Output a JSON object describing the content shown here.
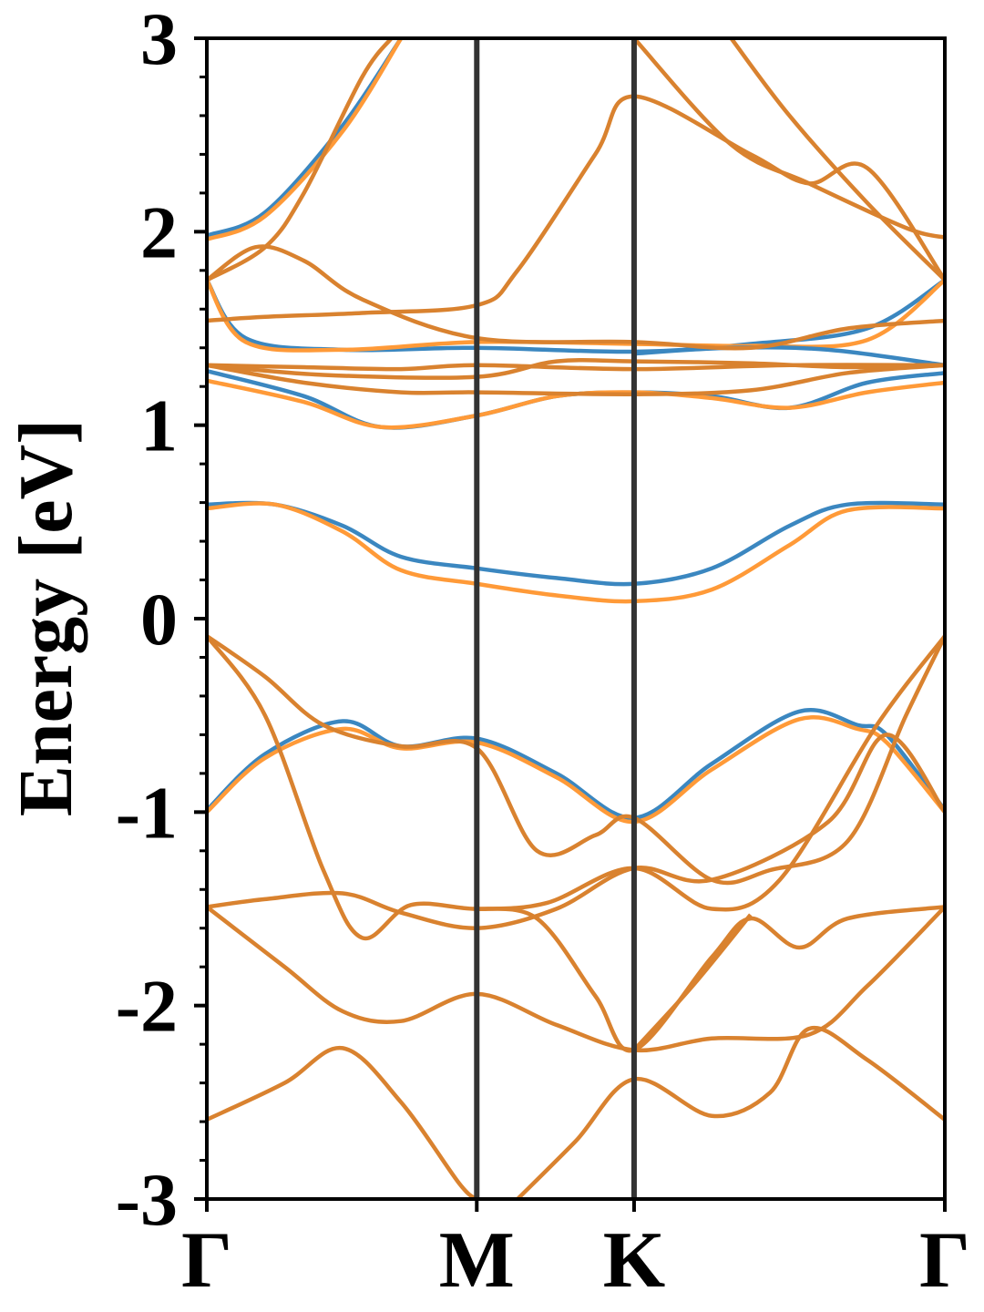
{
  "chart_data": {
    "type": "line",
    "title": "",
    "xlabel": "",
    "ylabel": "Energy [eV]",
    "ylim": [
      -3,
      3
    ],
    "yticks": [
      -3,
      -2,
      -1,
      0,
      1,
      2,
      3
    ],
    "ytick_labels": [
      "-3",
      "-2",
      "-1",
      "0",
      "1",
      "2",
      "3"
    ],
    "yminor_step": 0.2,
    "xlim": [
      0,
      3.8
    ],
    "kpoints": [
      {
        "label": "Γ",
        "x": 0
      },
      {
        "label": "M",
        "x": 1.39
      },
      {
        "label": "K",
        "x": 2.2
      },
      {
        "label": "Γ",
        "x": 3.8
      }
    ],
    "grid": false,
    "legend": "none",
    "colors": {
      "blue": "#3b87c0",
      "orange": "#ff9a38",
      "overlap": "#d9822f",
      "vline": "#333333"
    },
    "series": [
      {
        "color": "blue",
        "points": [
          [
            0,
            0.59
          ],
          [
            0.35,
            0.59
          ],
          [
            0.7,
            0.48
          ],
          [
            1.0,
            0.32
          ],
          [
            1.39,
            0.26
          ],
          [
            1.8,
            0.21
          ],
          [
            2.2,
            0.18
          ],
          [
            2.6,
            0.26
          ],
          [
            3.0,
            0.48
          ],
          [
            3.3,
            0.59
          ],
          [
            3.8,
            0.59
          ]
        ]
      },
      {
        "color": "orange",
        "points": [
          [
            0,
            0.57
          ],
          [
            0.35,
            0.59
          ],
          [
            0.7,
            0.45
          ],
          [
            1.0,
            0.25
          ],
          [
            1.39,
            0.18
          ],
          [
            1.8,
            0.12
          ],
          [
            2.2,
            0.09
          ],
          [
            2.6,
            0.15
          ],
          [
            3.0,
            0.38
          ],
          [
            3.3,
            0.56
          ],
          [
            3.8,
            0.57
          ]
        ]
      },
      {
        "color": "blue",
        "points": [
          [
            0,
            -0.99
          ],
          [
            0.3,
            -0.7
          ],
          [
            0.7,
            -0.53
          ],
          [
            1.0,
            -0.66
          ],
          [
            1.39,
            -0.62
          ],
          [
            1.8,
            -0.8
          ],
          [
            2.2,
            -1.03
          ],
          [
            2.6,
            -0.75
          ],
          [
            3.05,
            -0.48
          ],
          [
            3.35,
            -0.55
          ],
          [
            3.5,
            -0.6
          ],
          [
            3.8,
            -0.99
          ]
        ]
      },
      {
        "color": "orange",
        "points": [
          [
            0,
            -1.0
          ],
          [
            0.3,
            -0.72
          ],
          [
            0.7,
            -0.57
          ],
          [
            1.0,
            -0.67
          ],
          [
            1.39,
            -0.64
          ],
          [
            1.8,
            -0.82
          ],
          [
            2.2,
            -1.05
          ],
          [
            2.6,
            -0.78
          ],
          [
            3.05,
            -0.52
          ],
          [
            3.35,
            -0.57
          ],
          [
            3.5,
            -0.64
          ],
          [
            3.8,
            -1.0
          ]
        ]
      },
      {
        "color": "blue",
        "points": [
          [
            0,
            1.28
          ],
          [
            0.5,
            1.15
          ],
          [
            0.9,
            0.99
          ],
          [
            1.39,
            1.05
          ],
          [
            1.8,
            1.15
          ],
          [
            2.2,
            1.17
          ],
          [
            2.6,
            1.15
          ],
          [
            3.0,
            1.09
          ],
          [
            3.4,
            1.22
          ],
          [
            3.8,
            1.27
          ]
        ]
      },
      {
        "color": "orange",
        "points": [
          [
            0,
            1.23
          ],
          [
            0.5,
            1.12
          ],
          [
            0.9,
            0.99
          ],
          [
            1.39,
            1.05
          ],
          [
            1.8,
            1.15
          ],
          [
            2.2,
            1.17
          ],
          [
            2.6,
            1.14
          ],
          [
            3.0,
            1.09
          ],
          [
            3.4,
            1.17
          ],
          [
            3.8,
            1.22
          ]
        ]
      },
      {
        "color": "blue",
        "points": [
          [
            0,
            1.98
          ],
          [
            0.3,
            2.1
          ],
          [
            0.7,
            2.55
          ],
          [
            1.0,
            3.0
          ]
        ]
      },
      {
        "color": "orange",
        "points": [
          [
            0,
            1.96
          ],
          [
            0.3,
            2.08
          ],
          [
            0.7,
            2.52
          ],
          [
            1.0,
            3.0
          ]
        ]
      },
      {
        "color": "blue",
        "points": [
          [
            0,
            1.75
          ],
          [
            0.2,
            1.45
          ],
          [
            0.7,
            1.39
          ],
          [
            1.39,
            1.4
          ],
          [
            2.2,
            1.38
          ],
          [
            2.8,
            1.42
          ],
          [
            3.4,
            1.5
          ],
          [
            3.8,
            1.75
          ]
        ]
      },
      {
        "color": "orange",
        "points": [
          [
            0,
            1.75
          ],
          [
            0.2,
            1.43
          ],
          [
            0.7,
            1.39
          ],
          [
            1.39,
            1.43
          ],
          [
            2.2,
            1.42
          ],
          [
            2.8,
            1.41
          ],
          [
            3.4,
            1.44
          ],
          [
            3.8,
            1.75
          ]
        ]
      },
      {
        "color": "blue",
        "points": [
          [
            2.2,
            1.37
          ],
          [
            2.7,
            1.4
          ],
          [
            3.2,
            1.39
          ],
          [
            3.8,
            1.31
          ]
        ]
      },
      {
        "color": "overlap",
        "points": [
          [
            0,
            1.31
          ],
          [
            0.5,
            1.3
          ],
          [
            1.0,
            1.29
          ],
          [
            1.39,
            1.31
          ],
          [
            2.2,
            1.29
          ],
          [
            3.0,
            1.31
          ],
          [
            3.8,
            1.31
          ]
        ]
      },
      {
        "color": "overlap",
        "points": [
          [
            0,
            1.31
          ],
          [
            0.6,
            1.26
          ],
          [
            1.39,
            1.25
          ],
          [
            1.8,
            1.33
          ],
          [
            2.2,
            1.33
          ],
          [
            2.8,
            1.32
          ],
          [
            3.3,
            1.3
          ],
          [
            3.8,
            1.31
          ]
        ]
      },
      {
        "color": "overlap",
        "points": [
          [
            0,
            1.31
          ],
          [
            0.5,
            1.22
          ],
          [
            1.0,
            1.17
          ],
          [
            1.39,
            1.17
          ],
          [
            2.2,
            1.16
          ],
          [
            2.8,
            1.18
          ],
          [
            3.3,
            1.27
          ],
          [
            3.8,
            1.31
          ]
        ]
      },
      {
        "color": "overlap",
        "points": [
          [
            0,
            1.54
          ],
          [
            0.3,
            1.56
          ],
          [
            0.8,
            1.58
          ],
          [
            1.39,
            1.62
          ],
          [
            1.6,
            1.8
          ],
          [
            2.0,
            2.4
          ],
          [
            2.2,
            2.7
          ],
          [
            2.8,
            2.4
          ],
          [
            3.1,
            2.25
          ],
          [
            3.4,
            2.33
          ],
          [
            3.8,
            1.75
          ]
        ]
      },
      {
        "color": "overlap",
        "points": [
          [
            0,
            1.75
          ],
          [
            0.25,
            1.92
          ],
          [
            0.5,
            1.85
          ],
          [
            0.8,
            1.65
          ],
          [
            1.39,
            1.45
          ],
          [
            2.2,
            1.43
          ],
          [
            2.8,
            1.4
          ],
          [
            3.3,
            1.5
          ],
          [
            3.8,
            1.54
          ]
        ]
      },
      {
        "color": "overlap",
        "points": [
          [
            0,
            1.75
          ],
          [
            0.3,
            1.92
          ],
          [
            0.5,
            2.2
          ],
          [
            0.8,
            2.8
          ],
          [
            0.95,
            3.0
          ]
        ]
      },
      {
        "color": "overlap",
        "points": [
          [
            2.2,
            3.0
          ],
          [
            2.7,
            2.45
          ],
          [
            3.1,
            2.25
          ],
          [
            3.6,
            2.02
          ],
          [
            3.8,
            1.97
          ]
        ]
      },
      {
        "color": "overlap",
        "points": [
          [
            2.7,
            3.0
          ],
          [
            3.0,
            2.6
          ],
          [
            3.4,
            2.15
          ],
          [
            3.8,
            1.75
          ]
        ]
      },
      {
        "color": "overlap",
        "points": [
          [
            0,
            -0.09
          ],
          [
            0.3,
            -0.3
          ],
          [
            0.6,
            -0.55
          ],
          [
            1.0,
            -0.66
          ],
          [
            1.39,
            -0.67
          ],
          [
            1.7,
            -1.2
          ],
          [
            2.0,
            -1.12
          ],
          [
            2.2,
            -1.03
          ],
          [
            2.6,
            -1.35
          ],
          [
            2.9,
            -1.3
          ],
          [
            3.3,
            -1.15
          ],
          [
            3.6,
            -0.5
          ],
          [
            3.8,
            -0.09
          ]
        ]
      },
      {
        "color": "overlap",
        "points": [
          [
            0,
            -0.09
          ],
          [
            0.3,
            -0.5
          ],
          [
            0.6,
            -1.3
          ],
          [
            0.8,
            -1.65
          ],
          [
            1.05,
            -1.48
          ],
          [
            1.39,
            -1.5
          ],
          [
            1.75,
            -1.47
          ],
          [
            2.2,
            -1.29
          ],
          [
            2.6,
            -1.5
          ],
          [
            2.95,
            -1.35
          ],
          [
            3.45,
            -0.55
          ],
          [
            3.8,
            -0.09
          ]
        ]
      },
      {
        "color": "overlap",
        "points": [
          [
            0,
            -1.49
          ],
          [
            0.3,
            -1.45
          ],
          [
            0.7,
            -1.42
          ],
          [
            1.0,
            -1.52
          ],
          [
            1.39,
            -1.6
          ],
          [
            1.8,
            -1.5
          ],
          [
            2.2,
            -1.29
          ],
          [
            2.6,
            -1.35
          ],
          [
            3.2,
            -1.05
          ],
          [
            3.5,
            -0.6
          ],
          [
            3.8,
            -1.0
          ]
        ]
      },
      {
        "color": "overlap",
        "points": [
          [
            0,
            -1.49
          ],
          [
            0.4,
            -1.8
          ],
          [
            0.7,
            -2.03
          ],
          [
            1.0,
            -2.08
          ],
          [
            1.39,
            -1.94
          ],
          [
            1.8,
            -2.1
          ],
          [
            2.2,
            -2.23
          ],
          [
            2.6,
            -2.17
          ],
          [
            3.1,
            -2.15
          ],
          [
            3.4,
            -1.9
          ],
          [
            3.8,
            -1.49
          ]
        ]
      },
      {
        "color": "overlap",
        "points": [
          [
            1.39,
            -1.5
          ],
          [
            1.7,
            -1.55
          ],
          [
            2.0,
            -1.95
          ],
          [
            2.2,
            -2.23
          ],
          [
            2.6,
            -1.75
          ],
          [
            2.8,
            -1.55
          ],
          [
            3.05,
            -1.7
          ],
          [
            3.3,
            -1.55
          ],
          [
            3.8,
            -1.49
          ]
        ]
      },
      {
        "color": "overlap",
        "points": [
          [
            0,
            -2.59
          ],
          [
            0.4,
            -2.4
          ],
          [
            0.7,
            -2.22
          ],
          [
            1.0,
            -2.5
          ],
          [
            1.3,
            -2.92
          ],
          [
            1.39,
            -3.0
          ]
        ]
      },
      {
        "color": "overlap",
        "points": [
          [
            1.6,
            -3.0
          ],
          [
            1.9,
            -2.7
          ],
          [
            2.2,
            -2.38
          ],
          [
            2.6,
            -2.57
          ],
          [
            2.9,
            -2.45
          ],
          [
            3.1,
            -2.12
          ],
          [
            3.4,
            -2.28
          ],
          [
            3.8,
            -2.59
          ]
        ]
      },
      {
        "color": "overlap",
        "points": [
          [
            2.2,
            -2.23
          ],
          [
            2.5,
            -1.9
          ],
          [
            2.8,
            -1.53
          ]
        ]
      }
    ]
  }
}
